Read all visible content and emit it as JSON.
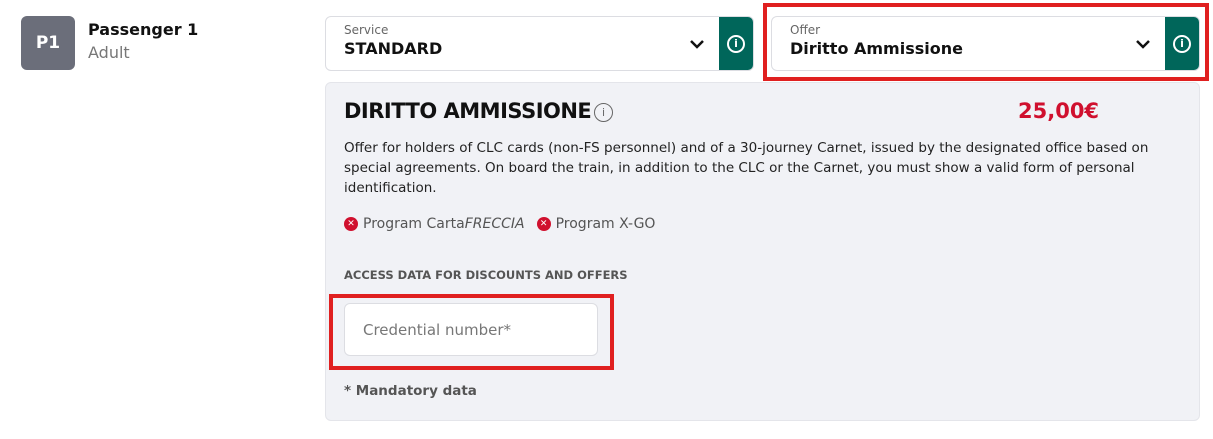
{
  "passenger": {
    "badge": "P1",
    "name": "Passenger 1",
    "type": "Adult"
  },
  "service": {
    "label": "Service",
    "value": "STANDARD",
    "info_icon": "info-icon",
    "chevron_icon": "chevron-down-icon"
  },
  "offer": {
    "label": "Offer",
    "value": "Diritto Ammissione",
    "info_icon": "info-icon",
    "chevron_icon": "chevron-down-icon"
  },
  "details": {
    "title": "DIRITTO AMMISSIONE",
    "price": "25,00€",
    "description": "Offer for holders of CLC cards (non-FS personnel) and of a 30-journey Carnet, issued by the designated office based on special agreements. On board the train, in addition to the CLC or the Carnet, you must show a valid form of personal identification.",
    "programs": [
      {
        "prefix": "Program Carta",
        "italic": "FRECCIA"
      },
      {
        "prefix": "Program X-GO",
        "italic": ""
      }
    ],
    "access_label": "ACCESS DATA FOR DISCOUNTS AND OFFERS",
    "credential_placeholder": "Credential number*",
    "credential_value": "",
    "mandatory_note": "* Mandatory data"
  },
  "colors": {
    "accent": "#00665a",
    "price": "#d0102e",
    "highlight": "#e02020"
  }
}
